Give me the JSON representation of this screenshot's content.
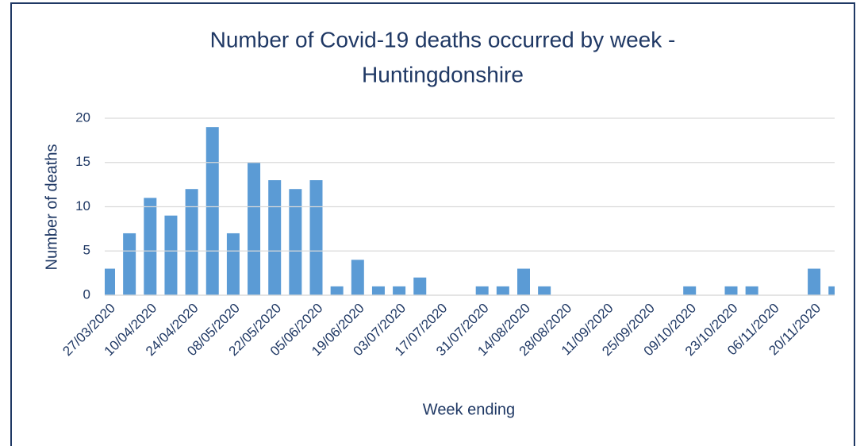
{
  "chart_data": {
    "type": "bar",
    "title": [
      "Number of Covid-19 deaths occurred by week -",
      "Huntingdonshire"
    ],
    "x_label": "Week ending",
    "y_label": "Number of deaths",
    "categories": [
      "27/03/2020",
      null,
      "10/04/2020",
      null,
      "24/04/2020",
      null,
      "08/05/2020",
      null,
      "22/05/2020",
      null,
      "05/06/2020",
      null,
      "19/06/2020",
      null,
      "03/07/2020",
      null,
      "17/07/2020",
      null,
      "31/07/2020",
      null,
      "14/08/2020",
      null,
      "28/08/2020",
      null,
      "11/09/2020",
      null,
      "25/09/2020",
      null,
      "09/10/2020",
      null,
      "23/10/2020",
      null,
      "06/11/2020",
      null,
      "20/11/2020",
      null
    ],
    "values": [
      3,
      7,
      11,
      9,
      12,
      19,
      7,
      15,
      13,
      12,
      13,
      1,
      4,
      1,
      1,
      2,
      0,
      0,
      1,
      1,
      3,
      1,
      0,
      0,
      0,
      0,
      0,
      0,
      1,
      0,
      1,
      1,
      0,
      0,
      3,
      1
    ],
    "color": "#5b9bd5",
    "ylim": [
      0,
      20
    ],
    "yticks": [
      0,
      5,
      10,
      15,
      20
    ],
    "grid": true
  }
}
